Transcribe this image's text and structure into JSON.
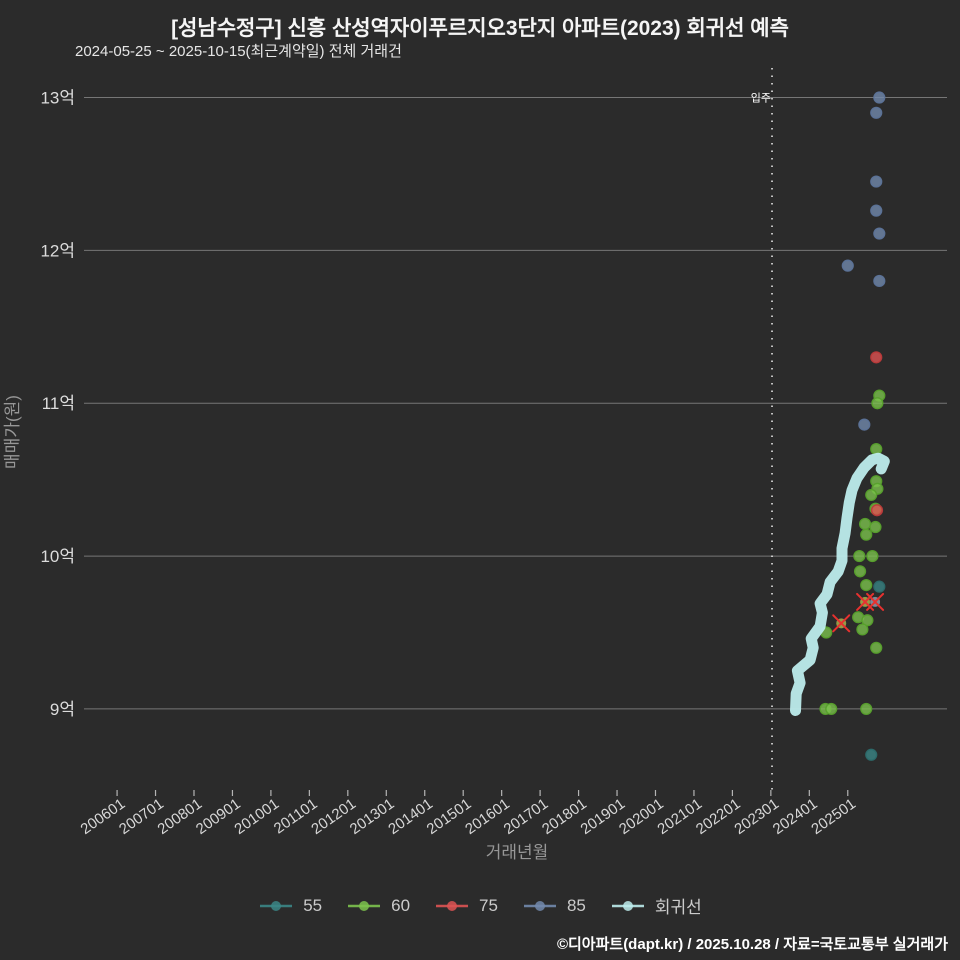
{
  "header": {
    "title": "[성남수정구] 신흥 산성역자이푸르지오3단지 아파트(2023) 회귀선 예측",
    "subtitle": "2024-05-25 ~ 2025-10-15(최근계약일) 전체 거래건"
  },
  "chart_data": {
    "type": "scatter",
    "title": "[성남수정구] 신흥 산성역자이푸르지오3단지 아파트(2023) 회귀선 예측",
    "xlabel": "거래년월",
    "ylabel": "매매가(원)",
    "grid": "horizontal-only",
    "legend_position": "bottom-center",
    "x_domain": [
      2005.14,
      2027.58
    ],
    "y_domain_eok": [
      8.45,
      13.18
    ],
    "y_ticks": [
      {
        "value": 9,
        "label": "9억"
      },
      {
        "value": 10,
        "label": "10억"
      },
      {
        "value": 11,
        "label": "11억"
      },
      {
        "value": 12,
        "label": "12억"
      },
      {
        "value": 13,
        "label": "13억"
      }
    ],
    "x_ticks": [
      {
        "value": 2006,
        "label": "200601"
      },
      {
        "value": 2007,
        "label": "200701"
      },
      {
        "value": 2008,
        "label": "200801"
      },
      {
        "value": 2009,
        "label": "200901"
      },
      {
        "value": 2010,
        "label": "201001"
      },
      {
        "value": 2011,
        "label": "201101"
      },
      {
        "value": 2012,
        "label": "201201"
      },
      {
        "value": 2013,
        "label": "201301"
      },
      {
        "value": 2014,
        "label": "201401"
      },
      {
        "value": 2015,
        "label": "201501"
      },
      {
        "value": 2016,
        "label": "201601"
      },
      {
        "value": 2017,
        "label": "201701"
      },
      {
        "value": 2018,
        "label": "201801"
      },
      {
        "value": 2019,
        "label": "201901"
      },
      {
        "value": 2020,
        "label": "202001"
      },
      {
        "value": 2021,
        "label": "202101"
      },
      {
        "value": 2022,
        "label": "202201"
      },
      {
        "value": 2023,
        "label": "202301"
      },
      {
        "value": 2024,
        "label": "202401"
      },
      {
        "value": 2025,
        "label": "202501"
      }
    ],
    "move_in_line": {
      "x": 2023.03,
      "label": "입주"
    },
    "series": [
      {
        "name": "55",
        "color": "#3b8686",
        "stroke": "#2c6b6b",
        "points": [
          [
            2025.82,
            9.8
          ],
          [
            2025.61,
            8.7
          ]
        ]
      },
      {
        "name": "60",
        "color": "#7cc24e",
        "stroke": "#57a02c",
        "points": [
          [
            2025.82,
            11.05
          ],
          [
            2025.77,
            11.0
          ],
          [
            2025.74,
            10.7
          ],
          [
            2025.74,
            10.49
          ],
          [
            2025.77,
            10.44
          ],
          [
            2025.61,
            10.4
          ],
          [
            2025.72,
            10.31
          ],
          [
            2025.45,
            10.21
          ],
          [
            2025.72,
            10.19
          ],
          [
            2025.48,
            10.14
          ],
          [
            2025.3,
            10.0
          ],
          [
            2025.64,
            10.0
          ],
          [
            2025.32,
            9.9
          ],
          [
            2025.48,
            9.81
          ],
          [
            2025.27,
            9.6
          ],
          [
            2025.51,
            9.58
          ],
          [
            2025.38,
            9.52
          ],
          [
            2024.44,
            9.5
          ],
          [
            2025.74,
            9.4
          ],
          [
            2024.42,
            9.0
          ],
          [
            2024.57,
            9.0
          ],
          [
            2025.48,
            9.0
          ]
        ]
      },
      {
        "name": "75",
        "color": "#dd5353",
        "stroke": "#bb3a3a",
        "points": [
          [
            2025.74,
            11.3
          ],
          [
            2025.76,
            10.3
          ]
        ]
      },
      {
        "name": "85",
        "color": "#7289ad",
        "stroke": "#5c7399",
        "points": [
          [
            2025.82,
            13.0
          ],
          [
            2025.74,
            12.9
          ],
          [
            2025.74,
            12.45
          ],
          [
            2025.74,
            12.26
          ],
          [
            2025.82,
            12.11
          ],
          [
            2025.0,
            11.9
          ],
          [
            2025.82,
            11.8
          ],
          [
            2025.43,
            10.86
          ]
        ]
      }
    ],
    "cancelled_marks": {
      "x_color": "#e8312f",
      "points": [
        {
          "x": 2024.83,
          "y": 9.56,
          "dot": "#a3a54a"
        },
        {
          "x": 2025.45,
          "y": 9.7,
          "dot": "#a3a54a"
        },
        {
          "x": 2025.71,
          "y": 9.7,
          "dot": "#8791a3"
        }
      ]
    },
    "regression": {
      "name": "회귀선",
      "color": "#bdecec",
      "points": [
        [
          2023.64,
          8.99
        ],
        [
          2023.66,
          9.1
        ],
        [
          2023.76,
          9.17
        ],
        [
          2023.69,
          9.25
        ],
        [
          2024.02,
          9.32
        ],
        [
          2024.1,
          9.4
        ],
        [
          2024.05,
          9.46
        ],
        [
          2024.28,
          9.54
        ],
        [
          2024.34,
          9.63
        ],
        [
          2024.28,
          9.69
        ],
        [
          2024.46,
          9.75
        ],
        [
          2024.54,
          9.83
        ],
        [
          2024.75,
          9.9
        ],
        [
          2024.85,
          9.97
        ],
        [
          2024.85,
          10.05
        ],
        [
          2024.93,
          10.15
        ],
        [
          2024.98,
          10.25
        ],
        [
          2025.04,
          10.35
        ],
        [
          2025.11,
          10.43
        ],
        [
          2025.24,
          10.51
        ],
        [
          2025.43,
          10.58
        ],
        [
          2025.63,
          10.63
        ],
        [
          2025.79,
          10.64
        ],
        [
          2025.95,
          10.62
        ],
        [
          2025.87,
          10.57
        ]
      ]
    }
  },
  "legend": {
    "items": [
      {
        "label": "55",
        "color": "#3b8686"
      },
      {
        "label": "60",
        "color": "#7cc24e"
      },
      {
        "label": "75",
        "color": "#dd5353"
      },
      {
        "label": "85",
        "color": "#7289ad"
      },
      {
        "label": "회귀선",
        "color": "#bdecec"
      }
    ]
  },
  "footer": {
    "attribution": "©디아파트(dapt.kr) / 2025.10.28 / 자료=국토교통부 실거래가"
  }
}
